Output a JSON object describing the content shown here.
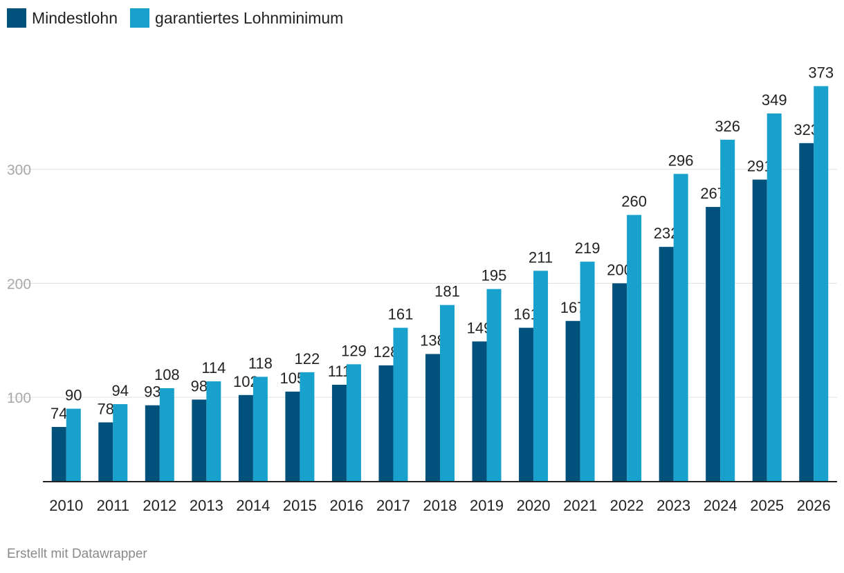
{
  "chart_data": {
    "type": "bar",
    "categories": [
      "2010",
      "2011",
      "2012",
      "2013",
      "2014",
      "2015",
      "2016",
      "2017",
      "2018",
      "2019",
      "2020",
      "2021",
      "2022",
      "2023",
      "2024",
      "2025",
      "2026"
    ],
    "series": [
      {
        "name": "Mindestlohn",
        "color": "#00517b",
        "values": [
          74,
          78,
          93,
          98,
          102,
          105,
          111,
          128,
          138,
          149,
          161,
          167,
          200,
          232,
          267,
          291,
          323
        ]
      },
      {
        "name": "garantiertes Lohnminimum",
        "color": "#18a1cd",
        "values": [
          90,
          94,
          108,
          114,
          118,
          122,
          129,
          161,
          181,
          195,
          211,
          219,
          260,
          296,
          326,
          349,
          373
        ]
      }
    ],
    "yticks": [
      100,
      200,
      300
    ],
    "ylim": [
      26,
      400
    ],
    "grid": true,
    "legend_position": "top-left",
    "data_labels": true
  },
  "footer": {
    "credit": "Erstellt mit Datawrapper"
  }
}
